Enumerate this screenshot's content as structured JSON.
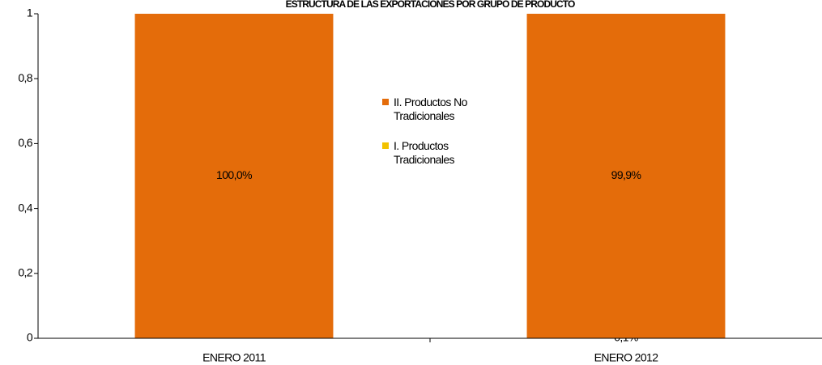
{
  "chart_data": {
    "type": "stacked_bar",
    "title": "ESTRUCTURA DE LAS EXPORTACIONES POR GRUPO DE PRODUCTO",
    "categories": [
      "ENERO 2011",
      "ENERO 2012"
    ],
    "series": [
      {
        "name": "I. Productos Tradicionales",
        "color": "#f2c200",
        "values": [
          0,
          0.001
        ],
        "value_labels": [
          null,
          "0,1%"
        ]
      },
      {
        "name": "II. Productos No Tradicionales",
        "color": "#e46c0a",
        "values": [
          1,
          0.999
        ],
        "value_labels": [
          "100,0%",
          "99,9%"
        ]
      }
    ],
    "ylim": [
      0,
      1
    ],
    "yticks": [
      0,
      {
        "value": 0.2,
        "label": "0,2"
      },
      {
        "value": 0.4,
        "label": "0,4"
      },
      {
        "value": 0.6,
        "label": "0,6"
      },
      {
        "value": 0.8,
        "label": "0,8"
      },
      1
    ],
    "grid": false,
    "legend": "center"
  }
}
